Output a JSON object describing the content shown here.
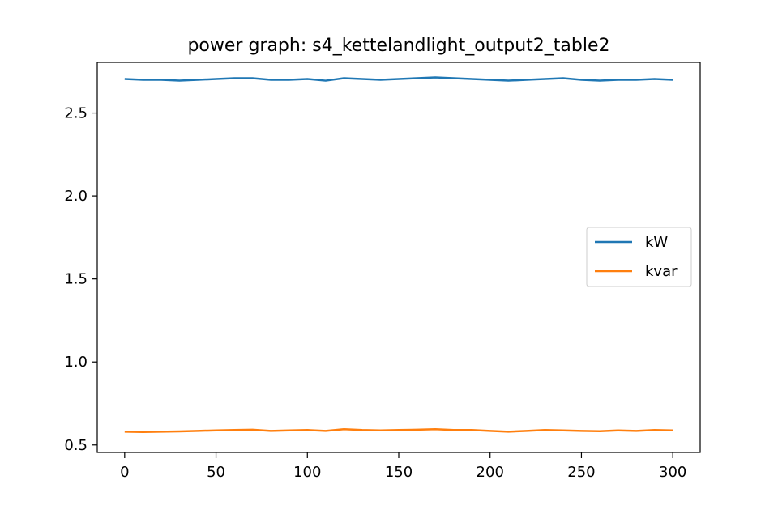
{
  "chart_data": {
    "type": "line",
    "title": "power graph: s4_kettelandlight_output2_table2",
    "xlabel": "",
    "ylabel": "",
    "xlim": [
      -15,
      315
    ],
    "ylim": [
      0.455,
      2.805
    ],
    "xticks": [
      0,
      50,
      100,
      150,
      200,
      250,
      300
    ],
    "yticks": [
      0.5,
      1.0,
      1.5,
      2.0,
      2.5
    ],
    "xtick_labels": [
      "0",
      "50",
      "100",
      "150",
      "200",
      "250",
      "300"
    ],
    "ytick_labels": [
      "0.5",
      "1.0",
      "1.5",
      "2.0",
      "2.5"
    ],
    "grid": false,
    "legend_position": "center-right",
    "series": [
      {
        "name": "kW",
        "color": "#1f77b4",
        "x": [
          0,
          10,
          20,
          30,
          40,
          50,
          60,
          70,
          80,
          90,
          100,
          110,
          120,
          130,
          140,
          150,
          160,
          170,
          180,
          190,
          200,
          210,
          220,
          230,
          240,
          250,
          260,
          270,
          280,
          290,
          300
        ],
        "values": [
          2.705,
          2.7,
          2.7,
          2.695,
          2.7,
          2.705,
          2.71,
          2.71,
          2.7,
          2.7,
          2.705,
          2.695,
          2.71,
          2.705,
          2.7,
          2.705,
          2.71,
          2.715,
          2.71,
          2.705,
          2.7,
          2.695,
          2.7,
          2.705,
          2.71,
          2.7,
          2.695,
          2.7,
          2.7,
          2.705,
          2.7
        ]
      },
      {
        "name": "kvar",
        "color": "#ff7f0e",
        "x": [
          0,
          10,
          20,
          30,
          40,
          50,
          60,
          70,
          80,
          90,
          100,
          110,
          120,
          130,
          140,
          150,
          160,
          170,
          180,
          190,
          200,
          210,
          220,
          230,
          240,
          250,
          260,
          270,
          280,
          290,
          300
        ],
        "values": [
          0.58,
          0.578,
          0.58,
          0.582,
          0.585,
          0.588,
          0.59,
          0.592,
          0.585,
          0.588,
          0.59,
          0.585,
          0.595,
          0.59,
          0.588,
          0.59,
          0.592,
          0.595,
          0.59,
          0.59,
          0.585,
          0.58,
          0.585,
          0.59,
          0.588,
          0.585,
          0.583,
          0.588,
          0.585,
          0.59,
          0.588
        ]
      }
    ]
  }
}
